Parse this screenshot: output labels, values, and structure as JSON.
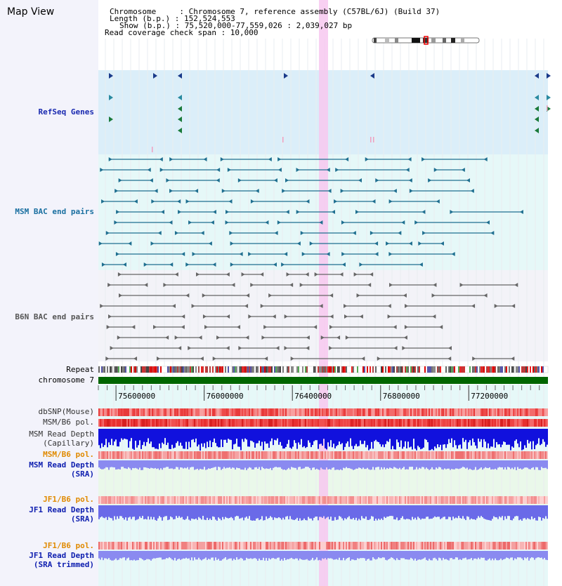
{
  "app_title": "Map View",
  "header": {
    "line1": "Chromosome     : Chromosome 7, reference assembly (C57BL/6J) (Build 37)",
    "line2": "Length (b.p.) : 152,524,553",
    "line3": "Show (b.p.) : 75,520,000-77,559,026 : 2,039,027 bp",
    "line4": "Read coverage check span : 10,000"
  },
  "tracks": {
    "refseq": "RefSeq Genes",
    "msm_bac": "MSM BAC end pairs",
    "b6n_bac": "B6N BAC end pairs",
    "repeat": "Repeat",
    "chromosome": "chromosome 7",
    "dbsnp": "dbSNP(Mouse)",
    "msm_b6_pol_1": "MSM/B6 pol.",
    "msm_depth_cap": "MSM Read Depth\n(Capillary)",
    "msm_b6_pol_2": "MSM/B6 pol.",
    "msm_depth_sra": "MSM Read Depth\n(SRA)",
    "jf1_b6_pol_1": "JF1/B6 pol.",
    "jf1_depth_sra": "JF1 Read Depth\n(SRA)",
    "jf1_b6_pol_2": "JF1/B6 pol.",
    "jf1_depth_trim": "JF1 Read Depth\n(SRA trimmed)"
  },
  "axis": {
    "ticks": [
      "75600000",
      "76000000",
      "76400000",
      "76800000",
      "77200000"
    ],
    "range": [
      75520000,
      77559026
    ]
  },
  "colors": {
    "refseq_label": "#1a2ab0",
    "msm_label": "#1a6fa0",
    "b6n_label": "#555555",
    "pol_label": "#e08a00",
    "depth_label": "#1020b0",
    "chromosome_bar": "#006600",
    "highlight": "#f7c8f0"
  }
}
